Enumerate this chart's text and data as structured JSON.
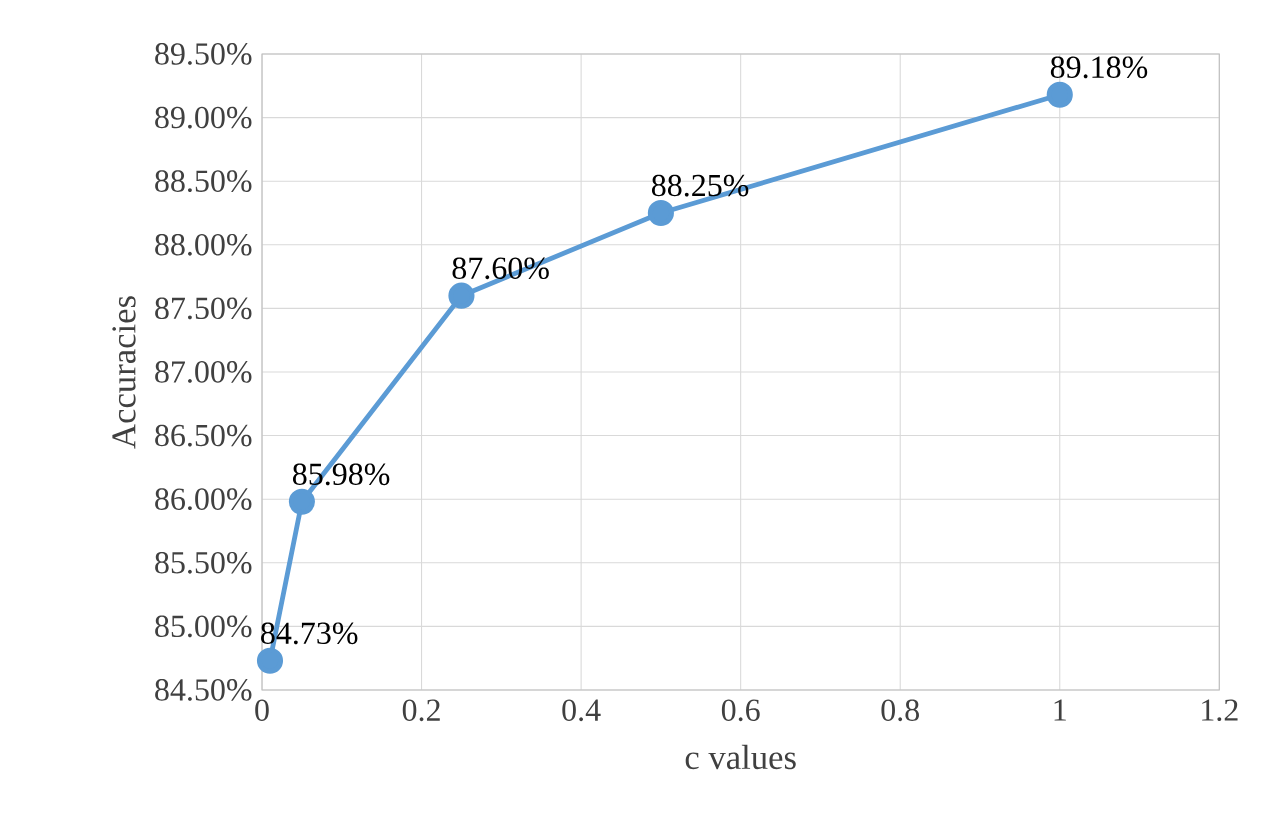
{
  "chart_data": {
    "type": "line",
    "xlabel": "c values",
    "ylabel": "Accuracies",
    "x": [
      0.01,
      0.05,
      0.25,
      0.5,
      1
    ],
    "values": [
      84.73,
      85.98,
      87.6,
      88.25,
      89.18
    ],
    "value_labels": [
      "84.73%",
      "85.98%",
      "87.60%",
      "88.25%",
      "89.18%"
    ],
    "color": "#5b9bd5",
    "marker": "circle",
    "grid": true,
    "xlim": [
      0,
      1.2
    ],
    "xticks": [
      0,
      0.2,
      0.4,
      0.6,
      0.8,
      1,
      1.2
    ],
    "ylim": [
      84.5,
      89.5
    ],
    "yticks": [
      {
        "value": 84.5,
        "label": "84.50%"
      },
      {
        "value": 85,
        "label": "85.00%"
      },
      {
        "value": 85.5,
        "label": "85.50%"
      },
      {
        "value": 86,
        "label": "86.00%"
      },
      {
        "value": 86.5,
        "label": "86.50%"
      },
      {
        "value": 87,
        "label": "87.00%"
      },
      {
        "value": 87.5,
        "label": "87.50%"
      },
      {
        "value": 88,
        "label": "88.00%"
      },
      {
        "value": 88.5,
        "label": "88.50%"
      },
      {
        "value": 89,
        "label": "89.00%"
      },
      {
        "value": 89.5,
        "label": "89.50%"
      }
    ]
  }
}
